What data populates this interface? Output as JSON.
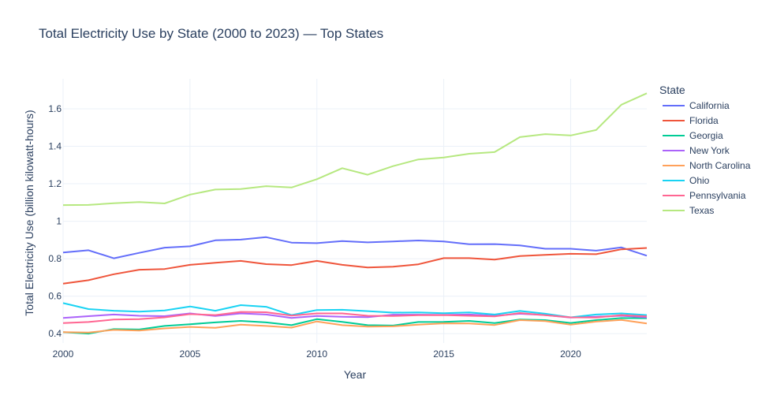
{
  "chart_data": {
    "type": "line",
    "title": "Total Electricity Use by State (2000 to 2023) — Top States",
    "xlabel": "Year",
    "ylabel": "Total Electricity Use (billion kilowatt-hours)",
    "xlim": [
      2000,
      2023
    ],
    "ylim": [
      0.35,
      1.76
    ],
    "x_ticks": [
      2000,
      2005,
      2010,
      2015,
      2020
    ],
    "x_tick_labels": [
      "2000",
      "2005",
      "2010",
      "2015",
      "2020"
    ],
    "y_ticks": [
      0.4,
      0.6,
      0.8,
      1.0,
      1.2,
      1.4,
      1.6
    ],
    "y_tick_labels": [
      "0.4",
      "0.6",
      "0.8",
      "1",
      "1.2",
      "1.4",
      "1.6"
    ],
    "grid": true,
    "legend_title": "State",
    "legend_position": "right",
    "x": [
      2000,
      2001,
      2002,
      2003,
      2004,
      2005,
      2006,
      2007,
      2008,
      2009,
      2010,
      2011,
      2012,
      2013,
      2014,
      2015,
      2016,
      2017,
      2018,
      2019,
      2020,
      2021,
      2022,
      2023
    ],
    "series": [
      {
        "name": "California",
        "color": "#636efa",
        "values": [
          0.833,
          0.845,
          0.802,
          0.831,
          0.859,
          0.866,
          0.898,
          0.902,
          0.915,
          0.886,
          0.883,
          0.894,
          0.887,
          0.892,
          0.897,
          0.892,
          0.877,
          0.878,
          0.871,
          0.853,
          0.853,
          0.843,
          0.86,
          0.816
        ]
      },
      {
        "name": "Florida",
        "color": "#EF553B",
        "values": [
          0.667,
          0.685,
          0.717,
          0.741,
          0.745,
          0.767,
          0.778,
          0.788,
          0.771,
          0.766,
          0.788,
          0.767,
          0.753,
          0.757,
          0.77,
          0.803,
          0.803,
          0.795,
          0.814,
          0.82,
          0.826,
          0.824,
          0.85,
          0.857
        ]
      },
      {
        "name": "Georgia",
        "color": "#00cc96",
        "values": [
          0.408,
          0.4,
          0.424,
          0.422,
          0.441,
          0.45,
          0.46,
          0.468,
          0.46,
          0.445,
          0.477,
          0.463,
          0.445,
          0.443,
          0.462,
          0.463,
          0.468,
          0.456,
          0.475,
          0.472,
          0.457,
          0.472,
          0.483,
          0.482
        ]
      },
      {
        "name": "New York",
        "color": "#ab63fa",
        "values": [
          0.484,
          0.493,
          0.502,
          0.495,
          0.493,
          0.508,
          0.494,
          0.508,
          0.502,
          0.484,
          0.494,
          0.49,
          0.488,
          0.501,
          0.501,
          0.5,
          0.502,
          0.495,
          0.506,
          0.499,
          0.486,
          0.49,
          0.495,
          0.487
        ]
      },
      {
        "name": "North Carolina",
        "color": "#FFA15A",
        "values": [
          0.408,
          0.406,
          0.42,
          0.416,
          0.428,
          0.436,
          0.431,
          0.448,
          0.441,
          0.432,
          0.465,
          0.445,
          0.437,
          0.439,
          0.448,
          0.455,
          0.454,
          0.446,
          0.472,
          0.467,
          0.448,
          0.464,
          0.473,
          0.454
        ]
      },
      {
        "name": "Ohio",
        "color": "#19d3f3",
        "values": [
          0.563,
          0.531,
          0.522,
          0.517,
          0.524,
          0.545,
          0.522,
          0.552,
          0.543,
          0.499,
          0.526,
          0.527,
          0.52,
          0.512,
          0.513,
          0.509,
          0.513,
          0.502,
          0.521,
          0.506,
          0.487,
          0.502,
          0.508,
          0.499
        ]
      },
      {
        "name": "Pennsylvania",
        "color": "#FF6692",
        "values": [
          0.456,
          0.462,
          0.475,
          0.477,
          0.487,
          0.504,
          0.499,
          0.516,
          0.514,
          0.496,
          0.508,
          0.508,
          0.495,
          0.494,
          0.498,
          0.499,
          0.495,
          0.492,
          0.51,
          0.498,
          0.487,
          0.486,
          0.499,
          0.492
        ]
      },
      {
        "name": "Texas",
        "color": "#B6E880",
        "values": [
          1.086,
          1.087,
          1.096,
          1.102,
          1.095,
          1.142,
          1.169,
          1.172,
          1.187,
          1.18,
          1.224,
          1.283,
          1.248,
          1.294,
          1.33,
          1.34,
          1.36,
          1.369,
          1.449,
          1.465,
          1.458,
          1.487,
          1.622,
          1.683
        ]
      }
    ]
  }
}
